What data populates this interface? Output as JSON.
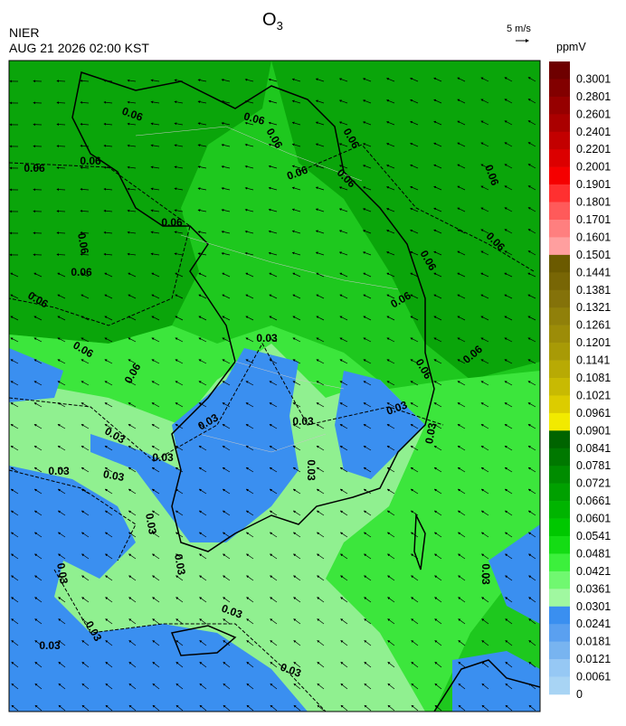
{
  "header": {
    "title": "O",
    "title_subscript": "3",
    "org": "NIER",
    "time": "AUG 21 2026 02:00 KST"
  },
  "vector_key": "5 m/s",
  "colorbar": {
    "unit": "ppmV",
    "labels": [
      0.3001,
      0.2801,
      0.2601,
      0.2401,
      0.2201,
      0.2001,
      0.1901,
      0.1801,
      0.1701,
      0.1601,
      0.1501,
      0.1441,
      0.1381,
      0.1321,
      0.1261,
      0.1201,
      0.1141,
      0.1081,
      0.1021,
      0.0961,
      0.0901,
      0.0841,
      0.0781,
      0.0721,
      0.0661,
      0.0601,
      0.0541,
      0.0481,
      0.0421,
      0.0361,
      0.0301,
      0.0241,
      0.0181,
      0.0121,
      0.0061,
      0
    ],
    "colors": [
      "#6e0000",
      "#820000",
      "#960000",
      "#aa0000",
      "#c30000",
      "#dc0000",
      "#f50000",
      "#ff3030",
      "#ff5a5a",
      "#ff7f7f",
      "#ff9f9f",
      "#6b5a00",
      "#786605",
      "#84720a",
      "#90800a",
      "#9c8c08",
      "#a89a06",
      "#b8aa04",
      "#c8ba02",
      "#dccc00",
      "#f2ea00",
      "#006400",
      "#007800",
      "#008c00",
      "#00a000",
      "#00b400",
      "#00c800",
      "#14dc14",
      "#3cf03c",
      "#70f870",
      "#a0f8a0",
      "#3a8ff0",
      "#5aa0f0",
      "#78b4f0",
      "#96c8f4",
      "#a8d4f4"
    ]
  },
  "map": {
    "contour_labels": [
      "0.06",
      "0.06",
      "0.06",
      "0.06",
      "0.06",
      "0.06",
      "0.06",
      "0.06",
      "0.06",
      "0.06",
      "0.06",
      "0.06",
      "0.06",
      "0.06",
      "0.06",
      "0.06",
      "0.06",
      "0.06",
      "0.06",
      "0.06",
      "0.03",
      "0.03",
      "0.03",
      "0.03",
      "0.03",
      "0.03",
      "0.03",
      "0.03",
      "0.03",
      "0.03",
      "0.03",
      "0.03",
      "0.03",
      "0.03",
      "0.03",
      "0.03",
      "0.03",
      "0.03"
    ]
  }
}
